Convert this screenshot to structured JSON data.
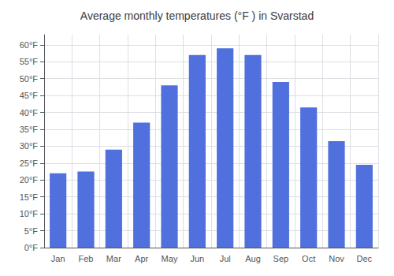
{
  "chart_data": {
    "type": "bar",
    "title": "Average monthly temperatures (°F ) in Svarstad",
    "categories": [
      "Jan",
      "Feb",
      "Mar",
      "Apr",
      "May",
      "Jun",
      "Jul",
      "Aug",
      "Sep",
      "Oct",
      "Nov",
      "Dec"
    ],
    "values": [
      22,
      22.5,
      29,
      37,
      48,
      57,
      59,
      57,
      49,
      41.5,
      31.5,
      24.5
    ],
    "ylim": [
      0,
      63
    ],
    "yticks": [
      {
        "value": 0,
        "label": "0°F"
      },
      {
        "value": 5,
        "label": "5°F"
      },
      {
        "value": 10,
        "label": "10°F"
      },
      {
        "value": 15,
        "label": "15°F"
      },
      {
        "value": 20,
        "label": "20°F"
      },
      {
        "value": 25,
        "label": "25°F"
      },
      {
        "value": 30,
        "label": "30°F"
      },
      {
        "value": 35,
        "label": "35°F"
      },
      {
        "value": 40,
        "label": "40°F"
      },
      {
        "value": 45,
        "label": "45°F"
      },
      {
        "value": 50,
        "label": "50°F"
      },
      {
        "value": 55,
        "label": "55°F"
      },
      {
        "value": 60,
        "label": "60°F"
      }
    ],
    "grid": true
  }
}
